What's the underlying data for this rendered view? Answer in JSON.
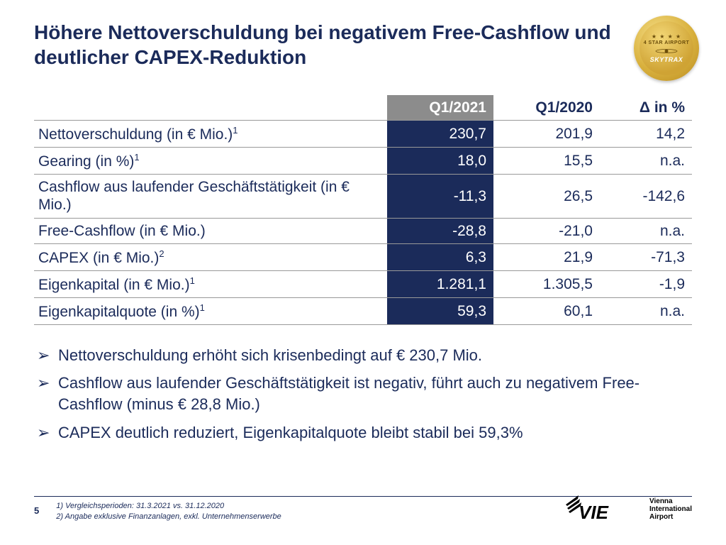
{
  "colors": {
    "navy": "#1b2b5a",
    "header_grey": "#8c8c8c",
    "row_border": "#999999",
    "gold1": "#f6e08a",
    "gold2": "#d9b13e",
    "gold3": "#b98a1f"
  },
  "title": "Höhere Nettoverschuldung bei negativem Free-Cashflow und deutlicher CAPEX-Reduktion",
  "badge": {
    "stars": "★ ★ ★ ★",
    "label": "4 STAR AIRPORT",
    "brand": "SKYTRAX"
  },
  "table": {
    "headers": {
      "label": "",
      "q1": "Q1/2021",
      "q2": "Q1/2020",
      "delta": "Δ in %"
    },
    "rows": [
      {
        "label": "Nettoverschuldung (in € Mio.)",
        "sup": "1",
        "q1": "230,7",
        "q2": "201,9",
        "delta": "14,2"
      },
      {
        "label": "Gearing (in %)",
        "sup": "1",
        "q1": "18,0",
        "q2": "15,5",
        "delta": "n.a."
      },
      {
        "label": "Cashflow aus laufender Geschäftstätigkeit (in € Mio.)",
        "sup": "",
        "q1": "-11,3",
        "q2": "26,5",
        "delta": "-142,6",
        "multiline": true
      },
      {
        "label": "Free-Cashflow (in € Mio.)",
        "sup": "",
        "q1": "-28,8",
        "q2": "-21,0",
        "delta": "n.a."
      },
      {
        "label": "CAPEX (in € Mio.)",
        "sup": "2",
        "q1": "6,3",
        "q2": "21,9",
        "delta": "-71,3"
      },
      {
        "label": "Eigenkapital (in € Mio.)",
        "sup": "1",
        "q1": "1.281,1",
        "q2": "1.305,5",
        "delta": "-1,9"
      },
      {
        "label": "Eigenkapitalquote (in %)",
        "sup": "1",
        "q1": "59,3",
        "q2": "60,1",
        "delta": "n.a."
      }
    ]
  },
  "bullets": [
    "Nettoverschuldung erhöht sich krisenbedingt auf € 230,7 Mio.",
    "Cashflow aus laufender Geschäftstätigkeit ist negativ, führt auch zu negativem Free-Cashflow (minus € 28,8 Mio.)",
    "CAPEX deutlich reduziert, Eigenkapitalquote bleibt stabil bei 59,3%"
  ],
  "footer": {
    "page": "5",
    "notes": [
      "1)   Vergleichsperioden: 31.3.2021 vs. 31.12.2020",
      "2)   Angabe exklusive Finanzanlagen, exkl. Unternehmenserwerbe"
    ],
    "logo": {
      "mark": "VIE",
      "sub_l1": "Vienna",
      "sub_l2": "International",
      "sub_l3": "Airport"
    }
  }
}
